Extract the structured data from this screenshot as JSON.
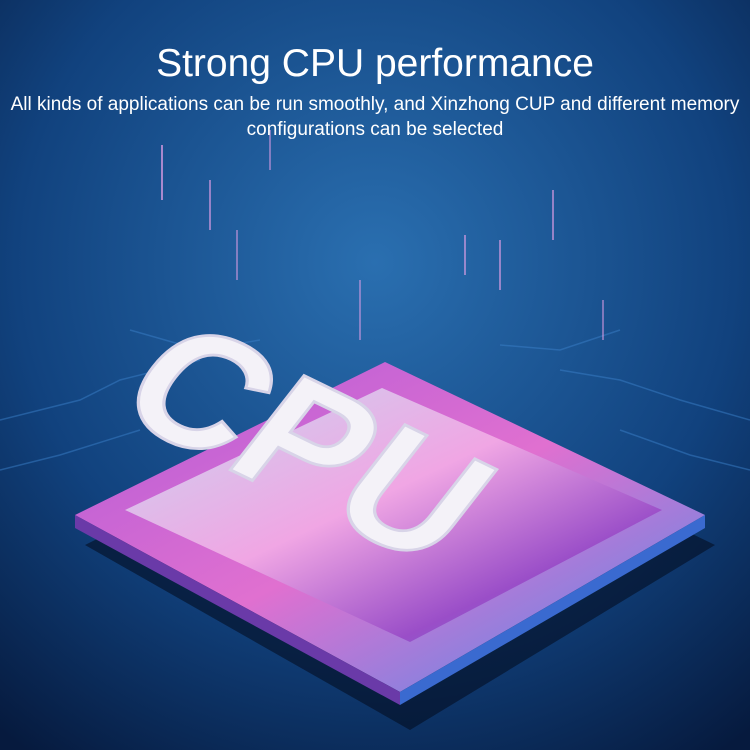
{
  "headline": "Strong CPU performance",
  "subtitle": "All kinds of applications can be run smoothly, and Xinzhong CUP and different memory configurations can be selected",
  "chip_label": "CPU",
  "colors": {
    "background_top": "#1d5a9a",
    "background_bottom": "#061a3e",
    "chip_pink": "#e070d0",
    "chip_blue": "#5aa8ff"
  }
}
